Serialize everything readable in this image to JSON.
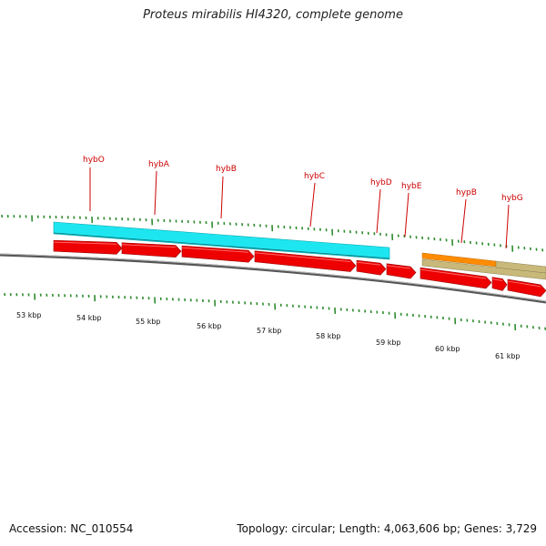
{
  "title": "Proteus mirabilis HI4320, complete genome",
  "footer": {
    "accession": "Accession: NC_010554",
    "summary": "Topology: circular; Length: 4,063,606 bp; Genes: 3,729"
  },
  "colors": {
    "gene_label": "#cc0000",
    "cds_arrow": "#ee0000",
    "tick": "#2e8b2e",
    "backbone": "#777777",
    "feature_cyan": "#1ee6f0",
    "feature_orange": "#ff8c00",
    "feature_tan": "#c8b87a"
  },
  "gene_labels": [
    {
      "name": "hybO"
    },
    {
      "name": "hybA"
    },
    {
      "name": "hybB"
    },
    {
      "name": "hybC"
    },
    {
      "name": "hybD"
    },
    {
      "name": "hybE"
    },
    {
      "name": "hypB"
    },
    {
      "name": "hybG"
    }
  ],
  "kbp_labels": [
    "53 kbp",
    "54 kbp",
    "55 kbp",
    "56 kbp",
    "57 kbp",
    "58 kbp",
    "59 kbp",
    "60 kbp",
    "61 kbp"
  ]
}
